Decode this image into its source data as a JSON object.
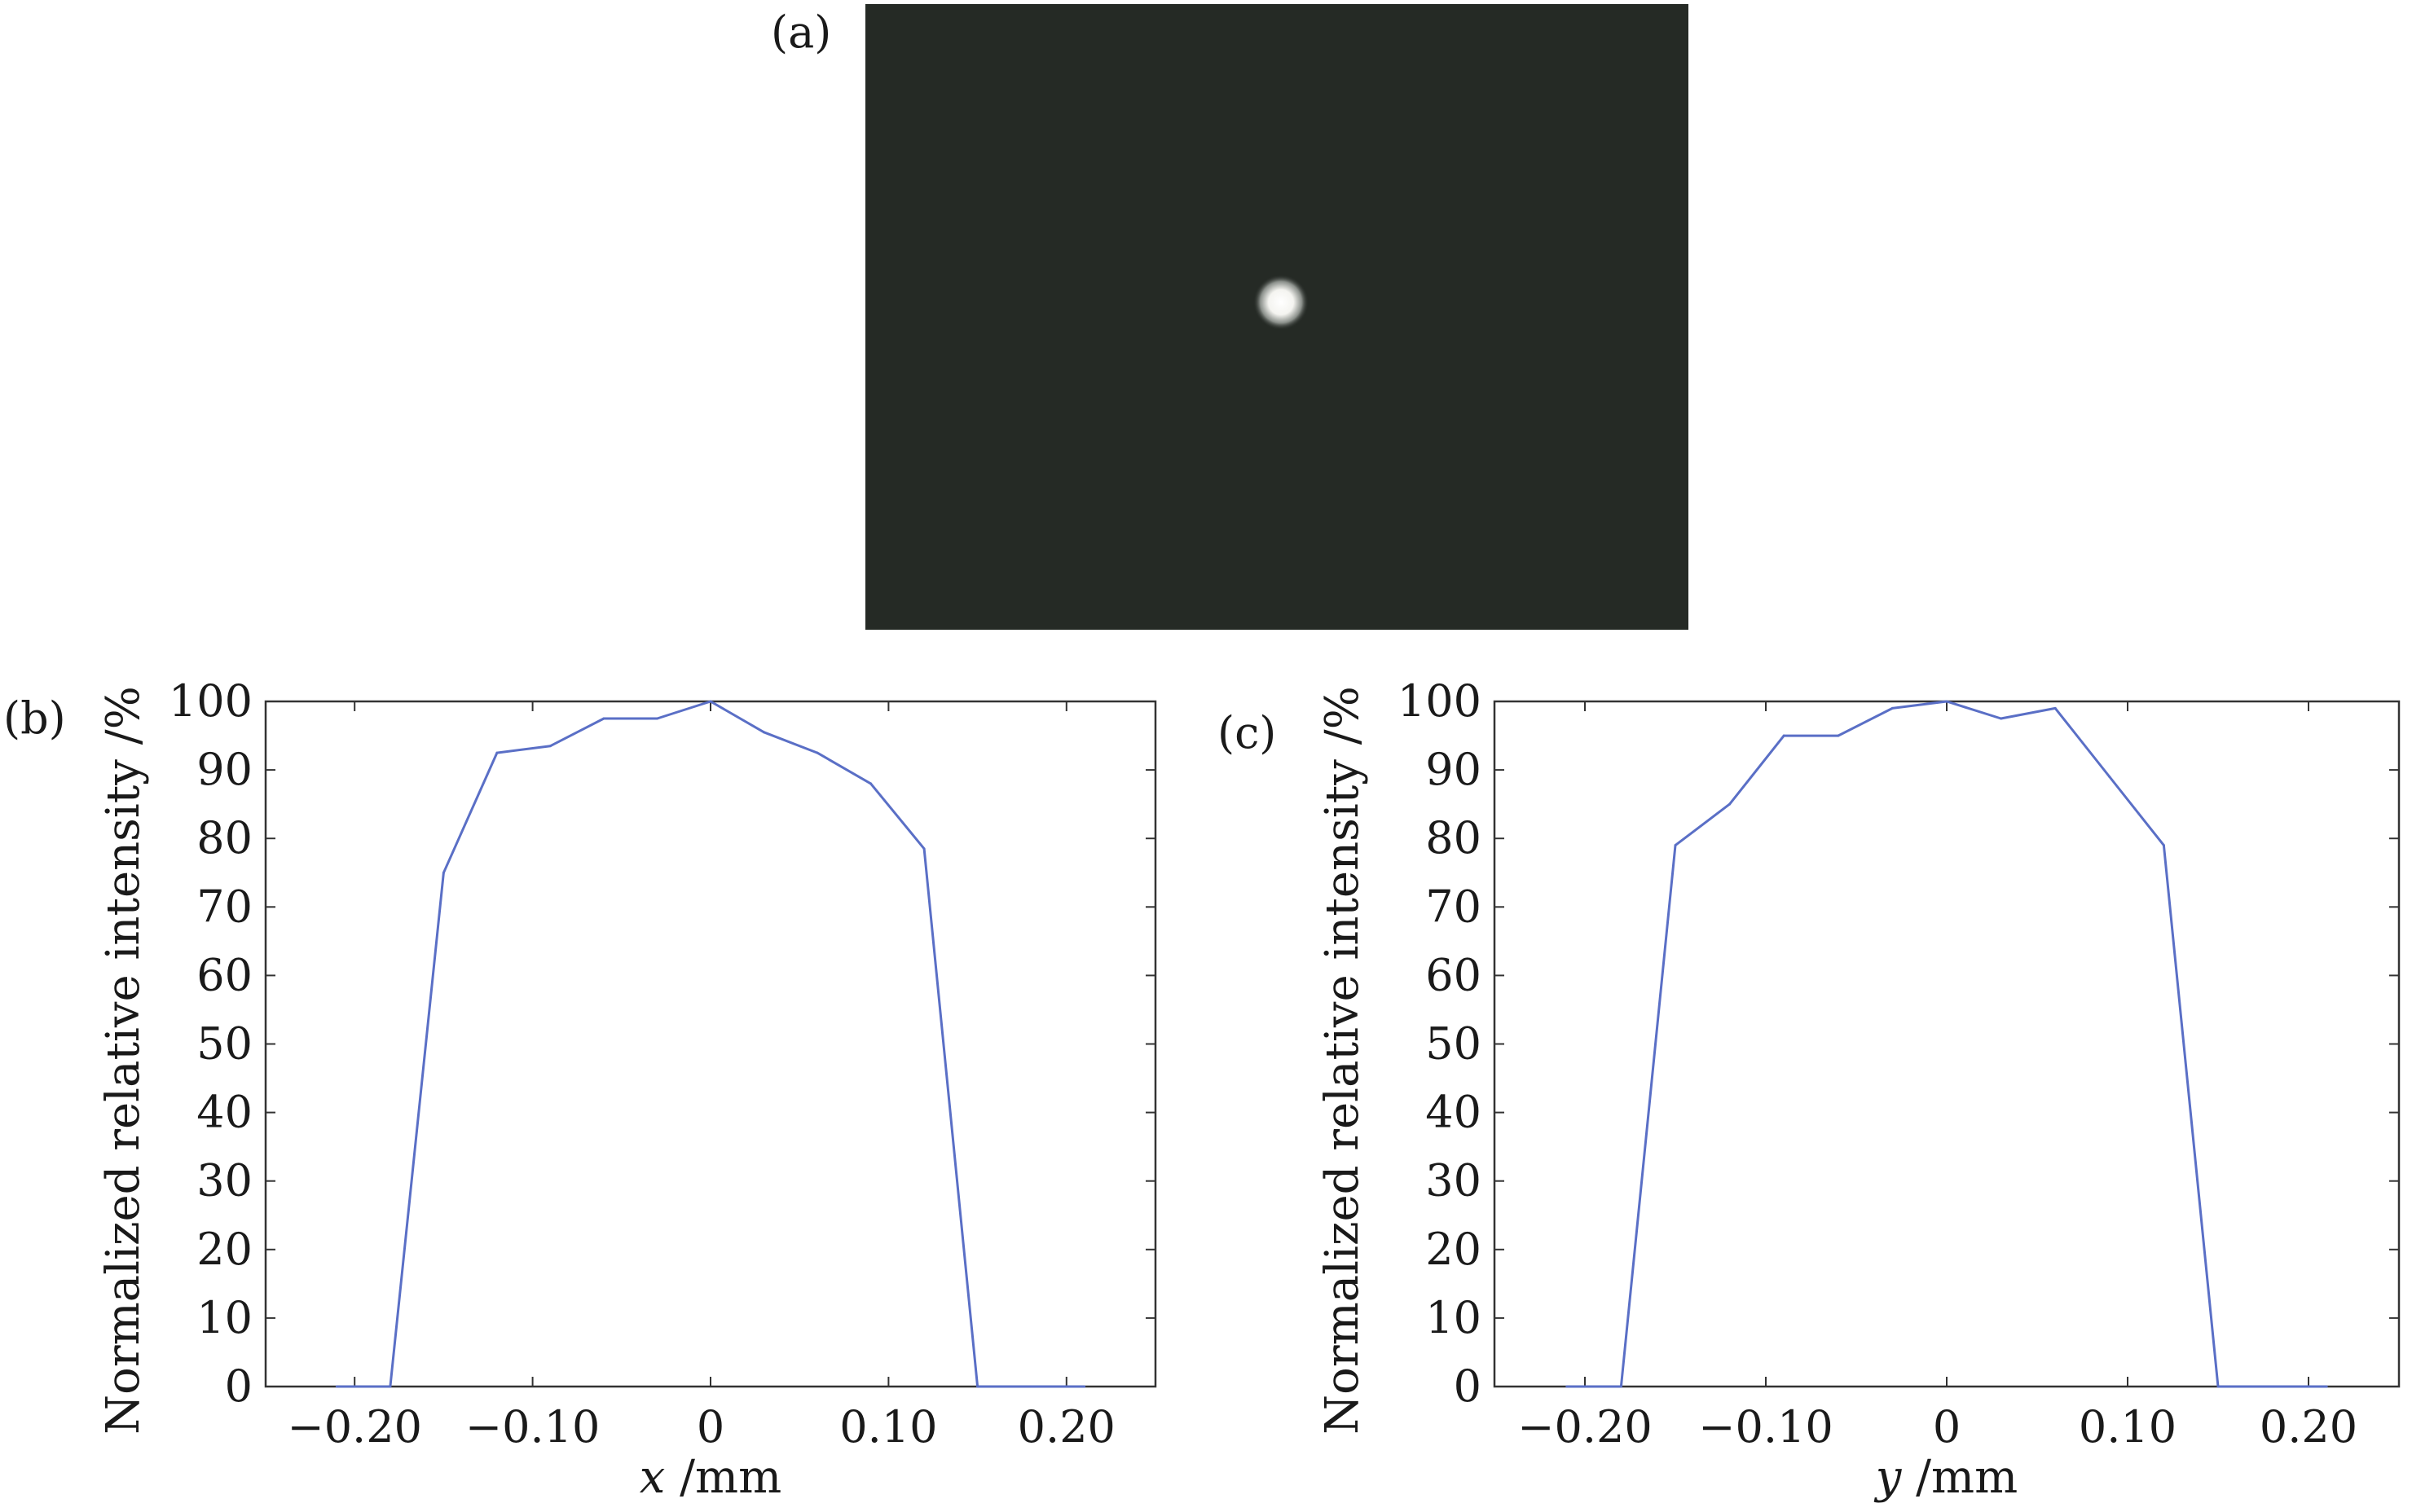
{
  "panels": {
    "a": {
      "label": "(a)"
    }
  },
  "chart_data": [
    {
      "type": "line",
      "panel_label": "(b)",
      "xlabel_var": "x",
      "xlabel_unit": " /mm",
      "ylabel": "Normalized relative intensity /%",
      "xlim": [
        -0.25,
        0.25
      ],
      "ylim": [
        0,
        100
      ],
      "xticks": [
        -0.2,
        -0.1,
        0,
        0.1,
        0.2
      ],
      "xtick_labels": [
        "−0.20",
        "−0.10",
        "0",
        "0.10",
        "0.20"
      ],
      "yticks": [
        0,
        10,
        20,
        30,
        40,
        50,
        60,
        70,
        80,
        90,
        100
      ],
      "ytick_labels": [
        "0",
        "10",
        "20",
        "30",
        "40",
        "50",
        "60",
        "70",
        "80",
        "90",
        "100"
      ],
      "grid": false,
      "line_color": "#5a6fc6",
      "x": [
        -0.21,
        -0.18,
        -0.15,
        -0.12,
        -0.09,
        -0.06,
        -0.03,
        0.0,
        0.03,
        0.06,
        0.09,
        0.12,
        0.15,
        0.18,
        0.21
      ],
      "y": [
        0,
        0,
        75,
        92.5,
        93.5,
        97.5,
        97.5,
        100,
        95.5,
        92.5,
        88,
        78.5,
        0,
        0,
        0
      ]
    },
    {
      "type": "line",
      "panel_label": "(c)",
      "xlabel_var": "y",
      "xlabel_unit": " /mm",
      "ylabel": "Normalized relative intensity /%",
      "xlim": [
        -0.25,
        0.25
      ],
      "ylim": [
        0,
        100
      ],
      "xticks": [
        -0.2,
        -0.1,
        0,
        0.1,
        0.2
      ],
      "xtick_labels": [
        "−0.20",
        "−0.10",
        "0",
        "0.10",
        "0.20"
      ],
      "yticks": [
        0,
        10,
        20,
        30,
        40,
        50,
        60,
        70,
        80,
        90,
        100
      ],
      "ytick_labels": [
        "0",
        "10",
        "20",
        "30",
        "40",
        "50",
        "60",
        "70",
        "80",
        "90",
        "100"
      ],
      "grid": false,
      "line_color": "#5a6fc6",
      "x": [
        -0.21,
        -0.18,
        -0.15,
        -0.12,
        -0.09,
        -0.06,
        -0.03,
        0.0,
        0.03,
        0.06,
        0.09,
        0.12,
        0.15,
        0.18,
        0.21
      ],
      "y": [
        0,
        0,
        79,
        85,
        95,
        95,
        99,
        100,
        97.5,
        99,
        89,
        79,
        0,
        0,
        0
      ]
    }
  ]
}
